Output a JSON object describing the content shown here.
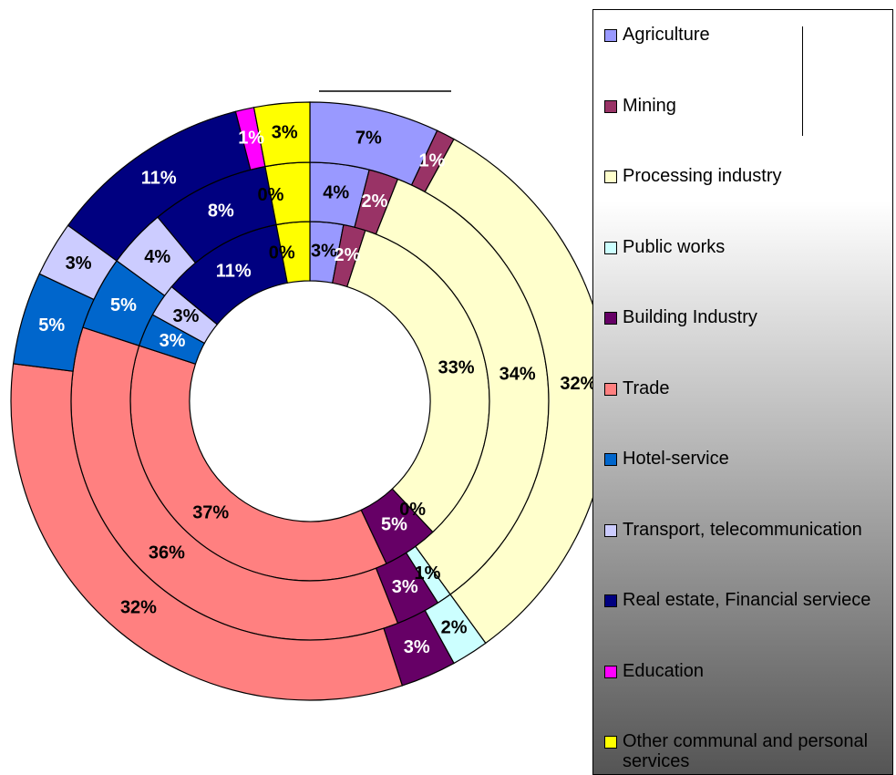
{
  "chart_data": {
    "type": "doughnut",
    "categories": [
      "Agriculture",
      "Mining",
      "Processing industry",
      "Public works",
      "Building Industry",
      "Trade",
      "Hotel-service",
      "Transport, telecommunication",
      "Real estate, Financial serviece",
      "Education",
      "Other communal and personal services"
    ],
    "colors": [
      "#9999ff",
      "#993366",
      "#ffffcc",
      "#ccffff",
      "#660066",
      "#ff8080",
      "#0066cc",
      "#ccccff",
      "#000080",
      "#ff00ff",
      "#ffff00"
    ],
    "series": [
      {
        "values": [
          3,
          2,
          33,
          0,
          5,
          37,
          3,
          3,
          11,
          0,
          3
        ],
        "value_labels": [
          "3%",
          "2%",
          "33%",
          "0%",
          "5%",
          "37%",
          "3%",
          "3%",
          "11%",
          "0%",
          null
        ]
      },
      {
        "values": [
          4,
          2,
          34,
          1,
          3,
          36,
          5,
          4,
          8,
          0,
          3
        ],
        "value_labels": [
          "4%",
          "2%",
          "34%",
          "1%",
          "3%",
          "36%",
          "5%",
          "4%",
          "8%",
          "0%",
          null
        ]
      },
      {
        "values": [
          7,
          1,
          32,
          2,
          3,
          32,
          5,
          3,
          11,
          1,
          3
        ],
        "value_labels": [
          "7%",
          "1%",
          "32%",
          "2%",
          "3%",
          "32%",
          "5%",
          "3%",
          "11%",
          "1%",
          "3%"
        ]
      }
    ],
    "legend": "right"
  }
}
